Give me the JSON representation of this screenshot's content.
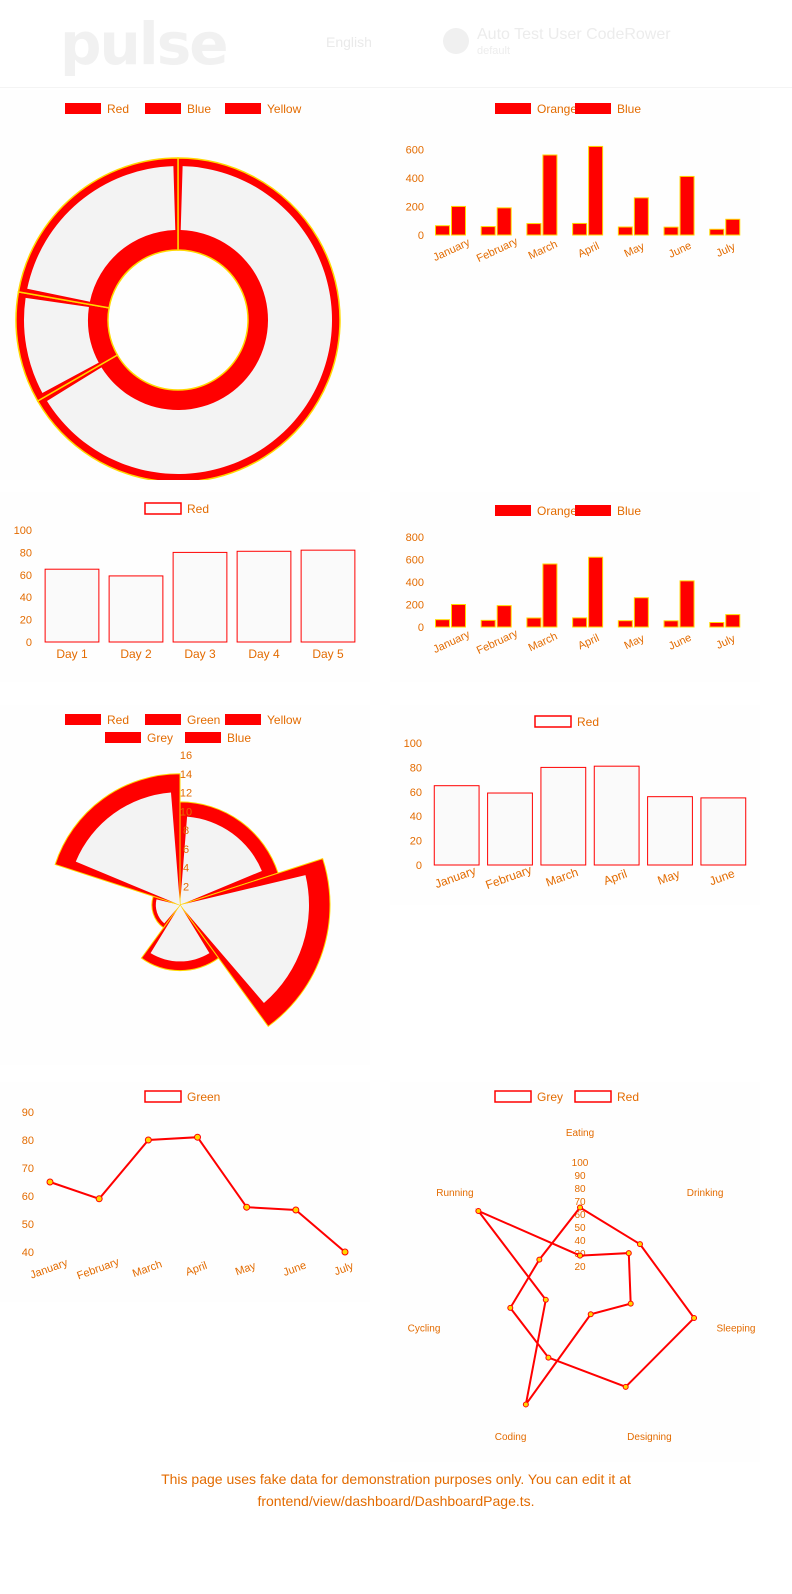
{
  "header": {
    "logo": "pulse",
    "language": "English",
    "user_name": "Auto Test User CodeRower",
    "user_role": "default"
  },
  "colors": {
    "accent": "#ff0000",
    "outline": "#ffd700",
    "fill": "#f3f3f3",
    "orange_text": "#e36b00"
  },
  "charts": [
    {
      "id": "doughnut",
      "chart_data": {
        "type": "pie",
        "legend": [
          "Red",
          "Blue",
          "Yellow"
        ],
        "values": [
          300,
          50,
          100
        ]
      }
    },
    {
      "id": "bar-grouped",
      "chart_data": {
        "type": "bar",
        "legend": [
          "Orange",
          "Blue"
        ],
        "categories": [
          "January",
          "February",
          "March",
          "April",
          "May",
          "June",
          "July"
        ],
        "series": [
          {
            "name": "Orange",
            "values": [
              65,
              59,
              80,
              81,
              56,
              55,
              40
            ]
          },
          {
            "name": "Blue",
            "values": [
              200,
              190,
              560,
              620,
              260,
              410,
              110
            ]
          }
        ],
        "yticks": [
          0,
          200,
          400,
          600
        ],
        "ylim": [
          0,
          700
        ]
      }
    },
    {
      "id": "bar-days",
      "chart_data": {
        "type": "bar",
        "legend": [
          "Red"
        ],
        "categories": [
          "Day 1",
          "Day 2",
          "Day 3",
          "Day 4",
          "Day 5"
        ],
        "values": [
          65,
          59,
          80,
          81,
          82
        ],
        "yticks": [
          0,
          20,
          40,
          60,
          80,
          100
        ],
        "ylim": [
          0,
          100
        ]
      }
    },
    {
      "id": "bar-grouped-2",
      "chart_data": {
        "type": "bar",
        "legend": [
          "Orange",
          "Blue"
        ],
        "categories": [
          "January",
          "February",
          "March",
          "April",
          "May",
          "June",
          "July"
        ],
        "series": [
          {
            "name": "Orange",
            "values": [
              65,
              59,
              80,
              81,
              56,
              55,
              40
            ]
          },
          {
            "name": "Blue",
            "values": [
              200,
              190,
              560,
              620,
              260,
              410,
              110
            ]
          }
        ],
        "yticks": [
          0,
          200,
          400,
          600,
          800
        ],
        "ylim": [
          0,
          800
        ]
      }
    },
    {
      "id": "polar",
      "chart_data": {
        "type": "pie",
        "legend": [
          "Red",
          "Green",
          "Yellow",
          "Grey",
          "Blue"
        ],
        "values": [
          11,
          16,
          7,
          3,
          14
        ],
        "rticks": [
          0,
          2,
          4,
          6,
          8,
          10,
          12,
          14,
          16
        ]
      }
    },
    {
      "id": "bar-months",
      "chart_data": {
        "type": "bar",
        "legend": [
          "Red"
        ],
        "categories": [
          "January",
          "February",
          "March",
          "April",
          "May",
          "June"
        ],
        "values": [
          65,
          59,
          80,
          81,
          56,
          55
        ],
        "yticks": [
          0,
          20,
          40,
          60,
          80,
          100
        ],
        "ylim": [
          0,
          100
        ]
      }
    },
    {
      "id": "line",
      "chart_data": {
        "type": "line",
        "legend": [
          "Green"
        ],
        "categories": [
          "January",
          "February",
          "March",
          "April",
          "May",
          "June",
          "July"
        ],
        "values": [
          65,
          59,
          80,
          81,
          56,
          55,
          40
        ],
        "yticks": [
          40,
          50,
          60,
          70,
          80,
          90
        ],
        "ylim": [
          40,
          90
        ]
      }
    },
    {
      "id": "radar",
      "chart_data": {
        "type": "line",
        "legend": [
          "Grey",
          "Red"
        ],
        "categories": [
          "Eating",
          "Drinking",
          "Sleeping",
          "Designing",
          "Coding",
          "Cycling",
          "Running"
        ],
        "series": [
          {
            "name": "Grey",
            "values": [
              65,
              59,
              90,
              81,
              56,
              55,
              40
            ]
          },
          {
            "name": "Red",
            "values": [
              28,
              48,
              40,
              19,
              96,
              27,
              100
            ]
          }
        ],
        "rticks": [
          20,
          30,
          40,
          50,
          60,
          70,
          80,
          90,
          100
        ],
        "ylim": [
          0,
          100
        ]
      }
    }
  ],
  "footer": {
    "text": "This page uses fake data for demonstration purposes only. You can edit it at frontend/view/dashboard/DashboardPage.ts."
  }
}
